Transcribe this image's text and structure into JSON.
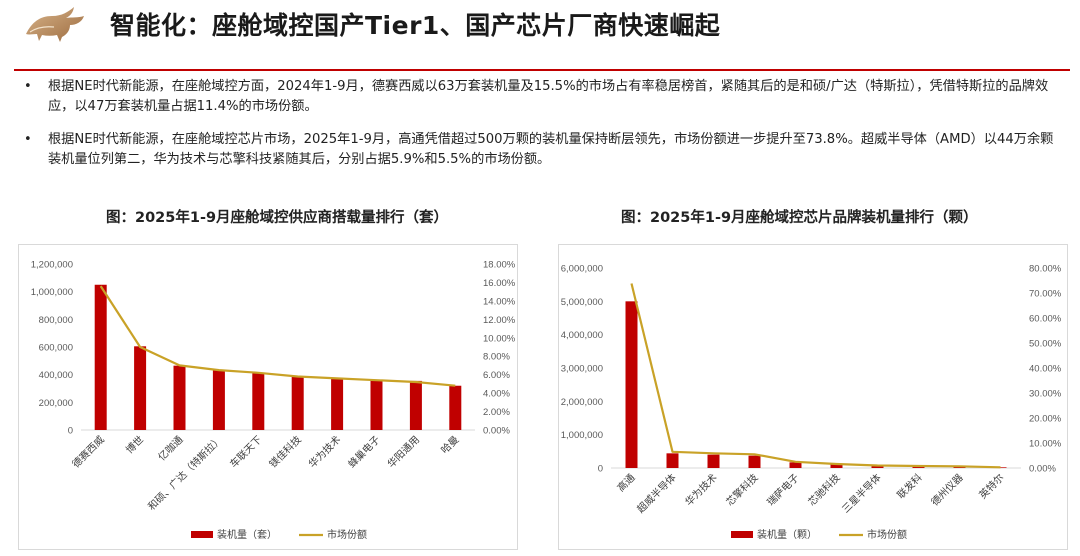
{
  "page": {
    "title": "智能化：座舱域控国产Tier1、国产芯片厂商快速崛起",
    "logo_icon": "bull-logo-icon",
    "accent_color": "#c00000"
  },
  "bullets": [
    "根据NE时代新能源，在座舱域控方面，2024年1-9月，德赛西威以63万套装机量及15.5%的市场占有率稳居榜首，紧随其后的是和硕/广达（特斯拉），凭借特斯拉的品牌效应，以47万套装机量占据11.4%的市场份额。",
    "根据NE时代新能源，在座舱域控芯片市场，2025年1-9月，高通凭借超过500万颗的装机量保持断层领先，市场份额进一步提升至73.8%。超威半导体（AMD）以44万余颗装机量位列第二，华为技术与芯擎科技紧随其后，分别占据5.9%和5.5%的市场份额。"
  ],
  "chart_data": [
    {
      "type": "bar",
      "caption": "图：2025年1-9月座舱域控供应商搭载量排行（套）",
      "categories": [
        "德赛西威",
        "博世",
        "亿咖通",
        "和硕、广达（特斯拉）",
        "车联天下",
        "镁佳科技",
        "华为技术",
        "蜂巢电子",
        "华阳通用",
        "哈曼"
      ],
      "series": [
        {
          "name": "装机量（套）",
          "type": "bar",
          "axis": "left",
          "color": "#c00000",
          "values": [
            1050000,
            605000,
            465000,
            430000,
            410000,
            385000,
            375000,
            365000,
            355000,
            320000
          ]
        },
        {
          "name": "市场份额",
          "type": "line",
          "axis": "right",
          "color": "#c9a227",
          "values": [
            15.6,
            9.0,
            7.0,
            6.5,
            6.2,
            5.8,
            5.6,
            5.4,
            5.2,
            4.8
          ]
        }
      ],
      "left_axis": {
        "min": 0,
        "max": 1200000,
        "step": 200000,
        "tick_labels": [
          "0",
          "200,000",
          "400,000",
          "600,000",
          "800,000",
          "1,000,000",
          "1,200,000"
        ]
      },
      "right_axis": {
        "min": 0,
        "max": 18,
        "step": 2,
        "tick_labels": [
          "0.00%",
          "2.00%",
          "4.00%",
          "6.00%",
          "8.00%",
          "10.00%",
          "12.00%",
          "14.00%",
          "16.00%",
          "18.00%"
        ]
      },
      "legend": [
        "装机量（套）",
        "市场份额"
      ],
      "legend_position": "bottom",
      "grid": false
    },
    {
      "type": "bar",
      "caption": "图：2025年1-9月座舱域控芯片品牌装机量排行（颗）",
      "categories": [
        "高通",
        "超威半导体",
        "华为技术",
        "芯擎科技",
        "瑞萨电子",
        "芯驰科技",
        "三星半导体",
        "联发科",
        "德州仪器",
        "英特尔"
      ],
      "series": [
        {
          "name": "装机量（颗）",
          "type": "bar",
          "axis": "left",
          "color": "#c00000",
          "values": [
            5000000,
            440000,
            400000,
            370000,
            170000,
            110000,
            65000,
            55000,
            45000,
            20000
          ]
        },
        {
          "name": "市场份额",
          "type": "line",
          "axis": "right",
          "color": "#c9a227",
          "values": [
            73.8,
            6.5,
            5.9,
            5.5,
            2.5,
            1.6,
            1.0,
            0.8,
            0.7,
            0.3
          ]
        }
      ],
      "left_axis": {
        "min": 0,
        "max": 6000000,
        "step": 1000000,
        "tick_labels": [
          "0",
          "1,000,000",
          "2,000,000",
          "3,000,000",
          "4,000,000",
          "5,000,000",
          "6,000,000"
        ]
      },
      "right_axis": {
        "min": 0,
        "max": 80,
        "step": 10,
        "tick_labels": [
          "0.00%",
          "10.00%",
          "20.00%",
          "30.00%",
          "40.00%",
          "50.00%",
          "60.00%",
          "70.00%",
          "80.00%"
        ]
      },
      "legend": [
        "装机量（颗）",
        "市场份额"
      ],
      "legend_position": "bottom",
      "grid": false
    }
  ]
}
